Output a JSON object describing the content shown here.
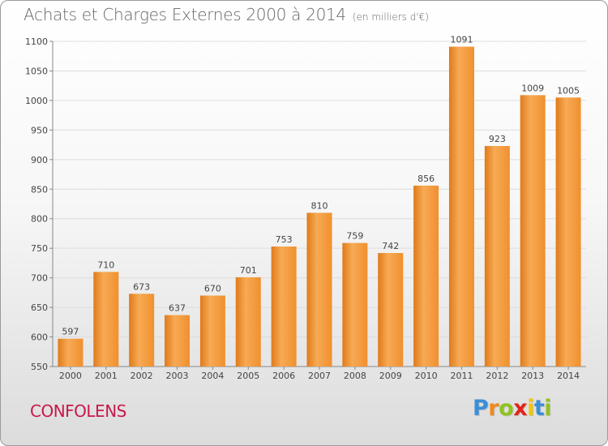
{
  "header": {
    "title": "Achats et Charges Externes 2000 à 2014",
    "subtitle": "(en milliers d'€)"
  },
  "footer": {
    "commune": "CONFOLENS",
    "logo_letters": [
      {
        "ch": "P",
        "color": "#3a8fd6"
      },
      {
        "ch": "r",
        "color": "#f08a1c"
      },
      {
        "ch": "o",
        "color": "#8fc21f"
      },
      {
        "ch": "x",
        "color": "#e2231a"
      },
      {
        "ch": "i",
        "color": "#f5c400"
      },
      {
        "ch": "t",
        "color": "#3a8fd6"
      },
      {
        "ch": "i",
        "color": "#8fc21f"
      }
    ]
  },
  "chart_data": {
    "type": "bar",
    "title": "Achats et Charges Externes 2000 à 2014",
    "subtitle": "(en milliers d'€)",
    "xlabel": "",
    "ylabel": "",
    "categories": [
      "2000",
      "2001",
      "2002",
      "2003",
      "2004",
      "2005",
      "2006",
      "2007",
      "2008",
      "2009",
      "2010",
      "2011",
      "2012",
      "2013",
      "2014"
    ],
    "values": [
      597,
      710,
      673,
      637,
      670,
      701,
      753,
      810,
      759,
      742,
      856,
      1091,
      923,
      1009,
      1005
    ],
    "ylim": [
      550,
      1100
    ],
    "yticks": [
      550,
      600,
      650,
      700,
      750,
      800,
      850,
      900,
      950,
      1000,
      1050,
      1100
    ],
    "grid": true,
    "bar_color": "#f0902e",
    "bar_color_light": "#f7aa55",
    "bar_color_dark": "#e07a1a",
    "data_labels": true
  }
}
